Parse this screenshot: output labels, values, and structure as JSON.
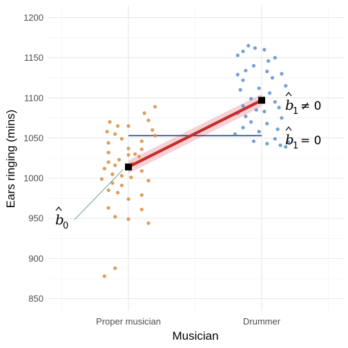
{
  "chart_data": {
    "type": "scatter",
    "title": "",
    "xlabel": "Musician",
    "ylabel": "Ears ringing (mins)",
    "categories": [
      "Proper musician",
      "Drummer"
    ],
    "ylim": [
      835,
      1215
    ],
    "yticks": [
      850,
      900,
      950,
      1000,
      1050,
      1100,
      1150,
      1200
    ],
    "grid": true,
    "legend": "none",
    "series": [
      {
        "category": "Proper musician",
        "color": "#D98A3D",
        "points": [
          {
            "j": -0.14,
            "y": 1070
          },
          {
            "j": 0.2,
            "y": 1089
          },
          {
            "j": 0.12,
            "y": 1081
          },
          {
            "j": -0.08,
            "y": 1065
          },
          {
            "j": 0.0,
            "y": 1065
          },
          {
            "j": 0.15,
            "y": 1072
          },
          {
            "j": 0.18,
            "y": 1060
          },
          {
            "j": 0.2,
            "y": 1053
          },
          {
            "j": -0.16,
            "y": 1058
          },
          {
            "j": -0.1,
            "y": 1055
          },
          {
            "j": -0.05,
            "y": 1049
          },
          {
            "j": 0.1,
            "y": 1046
          },
          {
            "j": -0.15,
            "y": 1044
          },
          {
            "j": 0.0,
            "y": 1037
          },
          {
            "j": 0.1,
            "y": 1036
          },
          {
            "j": -0.15,
            "y": 1032
          },
          {
            "j": 0.05,
            "y": 1030
          },
          {
            "j": 0.0,
            "y": 1029
          },
          {
            "j": 0.08,
            "y": 1027
          },
          {
            "j": -0.07,
            "y": 1023
          },
          {
            "j": -0.15,
            "y": 1020
          },
          {
            "j": 0.03,
            "y": 1018
          },
          {
            "j": -0.1,
            "y": 1016
          },
          {
            "j": -0.18,
            "y": 1012
          },
          {
            "j": 0.1,
            "y": 1009
          },
          {
            "j": -0.12,
            "y": 1005
          },
          {
            "j": -0.05,
            "y": 1003
          },
          {
            "j": 0.02,
            "y": 1001
          },
          {
            "j": -0.2,
            "y": 999
          },
          {
            "j": 0.15,
            "y": 997
          },
          {
            "j": -0.12,
            "y": 994
          },
          {
            "j": -0.05,
            "y": 991
          },
          {
            "j": -0.15,
            "y": 985
          },
          {
            "j": -0.08,
            "y": 982
          },
          {
            "j": 0.1,
            "y": 979
          },
          {
            "j": 0.0,
            "y": 974
          },
          {
            "j": -0.15,
            "y": 963
          },
          {
            "j": 0.1,
            "y": 961
          },
          {
            "j": -0.1,
            "y": 952
          },
          {
            "j": 0.0,
            "y": 949
          },
          {
            "j": 0.15,
            "y": 944
          },
          {
            "j": -0.1,
            "y": 888
          },
          {
            "j": -0.18,
            "y": 878
          }
        ]
      },
      {
        "category": "Drummer",
        "color": "#5B8FCC",
        "points": [
          {
            "j": -0.1,
            "y": 1165
          },
          {
            "j": -0.05,
            "y": 1162
          },
          {
            "j": -0.14,
            "y": 1158
          },
          {
            "j": 0.02,
            "y": 1160
          },
          {
            "j": -0.18,
            "y": 1153
          },
          {
            "j": 0.1,
            "y": 1150
          },
          {
            "j": 0.05,
            "y": 1146
          },
          {
            "j": -0.06,
            "y": 1140
          },
          {
            "j": -0.12,
            "y": 1134
          },
          {
            "j": -0.18,
            "y": 1129
          },
          {
            "j": 0.04,
            "y": 1133
          },
          {
            "j": 0.15,
            "y": 1130
          },
          {
            "j": -0.14,
            "y": 1122
          },
          {
            "j": 0.08,
            "y": 1125
          },
          {
            "j": 0.18,
            "y": 1115
          },
          {
            "j": -0.02,
            "y": 1112
          },
          {
            "j": -0.16,
            "y": 1110
          },
          {
            "j": 0.06,
            "y": 1106
          },
          {
            "j": -0.08,
            "y": 1099
          },
          {
            "j": 0.1,
            "y": 1095
          },
          {
            "j": -0.14,
            "y": 1090
          },
          {
            "j": 0.13,
            "y": 1088
          },
          {
            "j": -0.04,
            "y": 1085
          },
          {
            "j": 0.02,
            "y": 1083
          },
          {
            "j": -0.18,
            "y": 1081
          },
          {
            "j": -0.12,
            "y": 1077
          },
          {
            "j": 0.15,
            "y": 1075
          },
          {
            "j": -0.08,
            "y": 1070
          },
          {
            "j": 0.04,
            "y": 1068
          },
          {
            "j": -0.14,
            "y": 1063
          },
          {
            "j": 0.12,
            "y": 1061
          },
          {
            "j": -0.02,
            "y": 1058
          },
          {
            "j": -0.2,
            "y": 1055
          },
          {
            "j": 0.1,
            "y": 1049
          },
          {
            "j": -0.06,
            "y": 1046
          },
          {
            "j": 0.2,
            "y": 1045
          },
          {
            "j": 0.04,
            "y": 1043
          },
          {
            "j": 0.14,
            "y": 1041
          },
          {
            "j": 0.18,
            "y": 1039
          }
        ]
      }
    ],
    "means": [
      {
        "category": "Proper musician",
        "y": 1014
      },
      {
        "category": "Drummer",
        "y": 1097
      }
    ],
    "fit_line": {
      "color": "#C0302E",
      "band_color": "#F4C7CC",
      "band_half_width": 8
    },
    "reference_line": {
      "y": 1053,
      "from": "Proper musician",
      "to": "Drummer",
      "color": "#1F3F7A"
    },
    "annotations": {
      "b0": {
        "symbol": "b",
        "sub": "0",
        "relation": ""
      },
      "b1_neq": {
        "symbol": "b",
        "sub": "1",
        "relation": "≠ 0"
      },
      "b1_eq": {
        "symbol": "b",
        "sub": "1",
        "relation": "= 0"
      },
      "pointer_color": "#6E9E8A"
    }
  }
}
